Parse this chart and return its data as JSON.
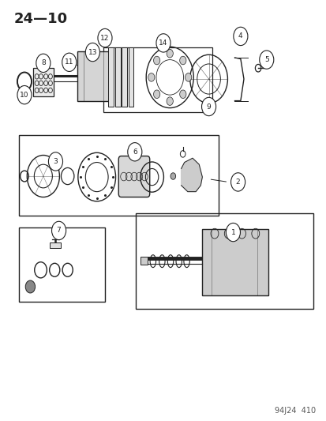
{
  "title": "24—10",
  "footer": "94J24  410",
  "background_color": "#ffffff",
  "line_color": "#222222",
  "fig_width": 4.14,
  "fig_height": 5.33
}
